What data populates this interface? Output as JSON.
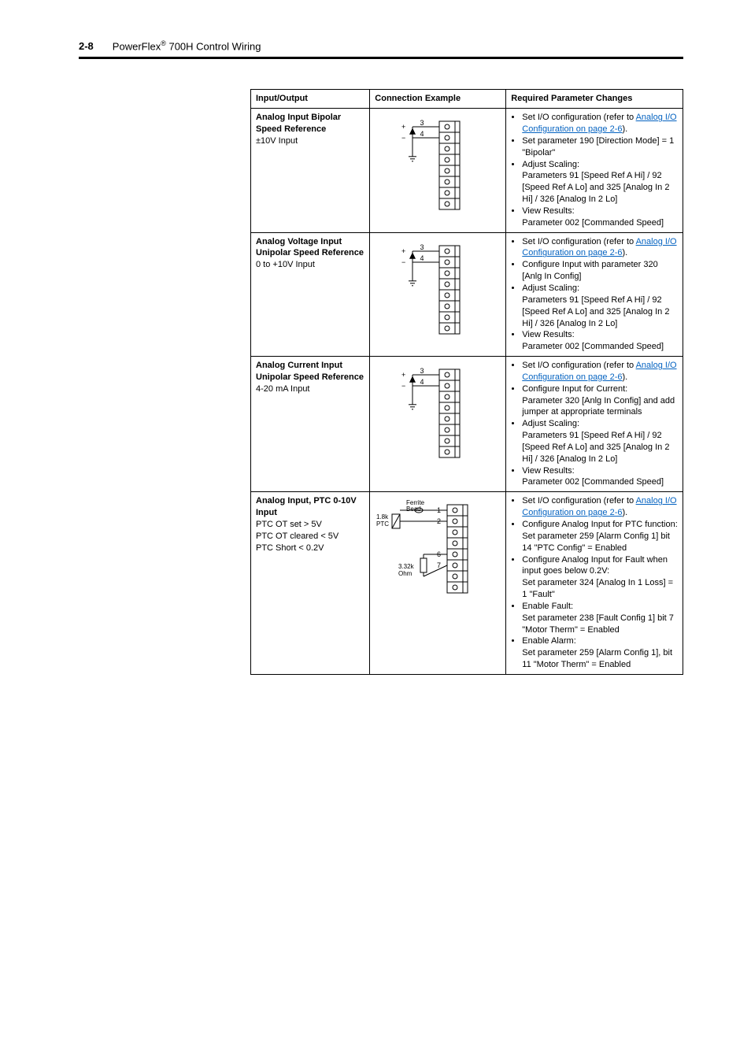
{
  "header": {
    "page_num": "2-8",
    "title_prefix": "PowerFlex",
    "title_sup": "®",
    "title_suffix": " 700H Control Wiring"
  },
  "table": {
    "headers": [
      "Input/Output",
      "Connection Example",
      "Required Parameter Changes"
    ],
    "rows": [
      {
        "io_bold": "Analog Input Bipolar Speed Reference",
        "io_plain": "±10V Input",
        "example": {
          "type": "simple",
          "labels": [
            "3",
            "4"
          ]
        },
        "req": [
          {
            "text": "Set I/O configuration (refer to ",
            "link": "Analog I/O Configuration on page 2-6",
            "after": ")."
          },
          {
            "text": "Set parameter 190 [Direction Mode] = 1 \"Bipolar\""
          },
          {
            "text": "Adjust Scaling:\nParameters 91 [Speed Ref A Hi] / 92 [Speed Ref A Lo] and 325 [Analog In 2 Hi] / 326 [Analog In 2 Lo]"
          },
          {
            "text": "View Results:\nParameter 002 [Commanded Speed]"
          }
        ]
      },
      {
        "io_bold": "Analog Voltage Input Unipolar Speed Reference",
        "io_plain": "0 to +10V Input",
        "example": {
          "type": "simple",
          "labels": [
            "3",
            "4"
          ]
        },
        "req": [
          {
            "text": "Set I/O configuration (refer to ",
            "link": "Analog I/O Configuration on page 2-6",
            "after": ")."
          },
          {
            "text": "Configure Input with parameter 320 [Anlg In Config]"
          },
          {
            "text": "Adjust Scaling:\nParameters 91 [Speed Ref A Hi] / 92 [Speed Ref A Lo] and 325 [Analog In 2 Hi] / 326 [Analog In 2 Lo]"
          },
          {
            "text": "View Results:\nParameter 002 [Commanded Speed]"
          }
        ]
      },
      {
        "io_bold": "Analog Current Input Unipolar Speed Reference",
        "io_plain": "4-20 mA Input",
        "example": {
          "type": "simple",
          "labels": [
            "3",
            "4"
          ]
        },
        "req": [
          {
            "text": "Set I/O configuration (refer to ",
            "link": "Analog I/O Configuration on page 2-6",
            "after": ")."
          },
          {
            "text": "Configure Input for Current:\nParameter 320 [Anlg In Config] and add jumper at appropriate terminals"
          },
          {
            "text": "Adjust Scaling:\nParameters 91 [Speed Ref A Hi] / 92 [Speed Ref A Lo] and 325 [Analog In 2 Hi] / 326 [Analog In 2 Lo]"
          },
          {
            "text": "View Results:\nParameter 002 [Commanded Speed]"
          }
        ]
      },
      {
        "io_bold": "Analog Input, PTC 0-10V Input",
        "io_plain": "PTC OT set > 5V\nPTC OT cleared < 5V\nPTC Short < 0.2V",
        "example": {
          "type": "ptc",
          "ferrite": "Ferrite\nBead",
          "ptc": "1.8k\nPTC",
          "ohm": "3.32k\nOhm",
          "labels": [
            "1",
            "2",
            "6",
            "7"
          ]
        },
        "req": [
          {
            "text": "Set I/O configuration (refer to ",
            "link": "Analog I/O Configuration on page 2-6",
            "after": ")."
          },
          {
            "text": "Configure Analog Input for PTC function:\nSet parameter 259 [Alarm Config 1] bit 14 \"PTC Config\" = Enabled"
          },
          {
            "text": "Configure Analog Input for Fault when input goes below 0.2V:\nSet parameter 324 [Analog In 1 Loss] = 1 \"Fault\""
          },
          {
            "text": "Enable Fault:\nSet parameter 238 [Fault Config 1] bit 7 \"Motor Therm\" = Enabled"
          },
          {
            "text": "Enable Alarm:\nSet parameter 259 [Alarm Config 1], bit 11 \"Motor Therm\" = Enabled"
          }
        ]
      }
    ]
  },
  "colors": {
    "link": "#0563c1",
    "rule": "#000000"
  }
}
